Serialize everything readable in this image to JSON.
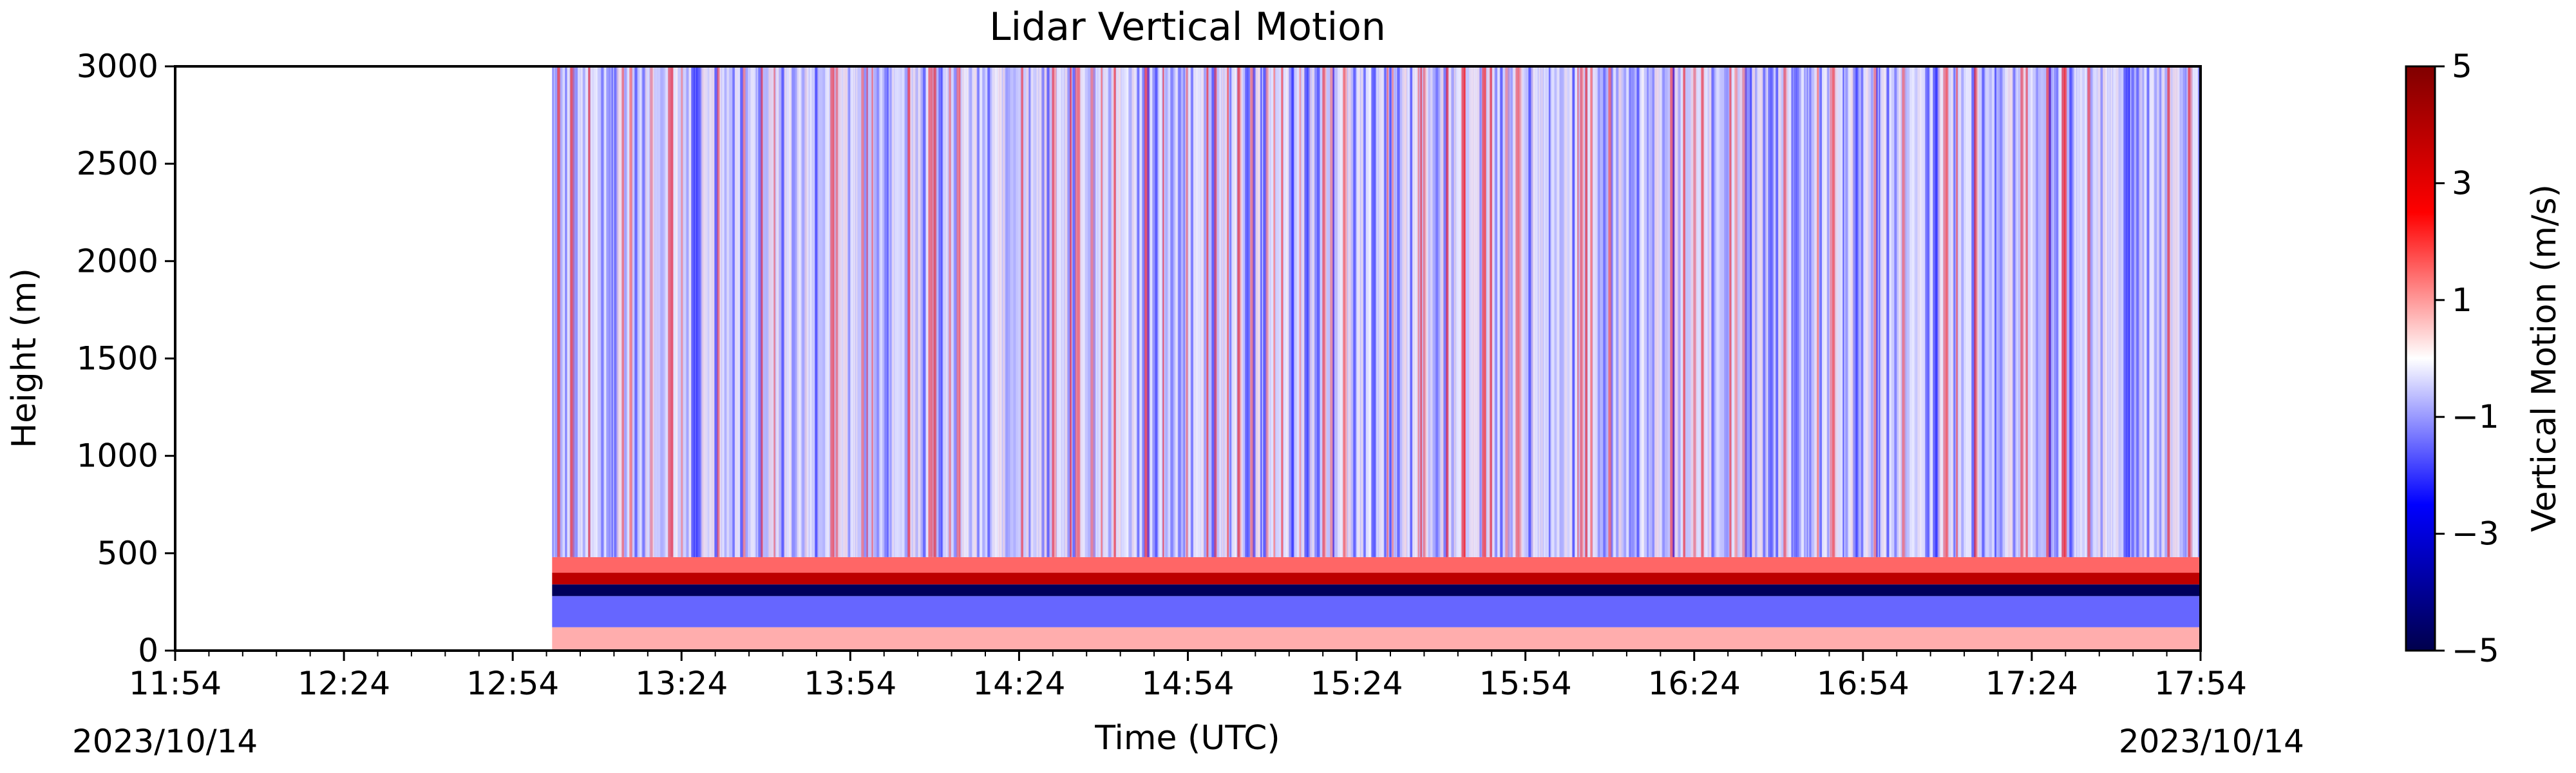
{
  "chart_data": {
    "type": "heatmap",
    "title": "Lidar Vertical Motion",
    "xlabel": "Time (UTC)",
    "ylabel": "Height (m)",
    "colorbar_label": "Vertical Motion (m/s)",
    "colormap": "seismic",
    "x_ticks": [
      "11:54",
      "12:24",
      "12:54",
      "13:24",
      "13:54",
      "14:24",
      "14:54",
      "15:24",
      "15:54",
      "16:24",
      "16:54",
      "17:24",
      "17:54"
    ],
    "x_date_left": "2023/10/14",
    "x_date_right": "2023/10/14",
    "xlim": [
      "2023-10-14 11:54",
      "2023-10-14 17:54"
    ],
    "data_start": "2023-10-14 13:01",
    "y_ticks": [
      0,
      500,
      1000,
      1500,
      2000,
      2500,
      3000
    ],
    "ylim": [
      0,
      3000
    ],
    "clim": [
      -5,
      5
    ],
    "colorbar_ticks": [
      "5",
      "3",
      "1",
      "−1",
      "−3",
      "−5"
    ],
    "colorbar_tick_values": [
      5,
      3,
      1,
      -1,
      -3,
      -5
    ],
    "layers": [
      {
        "from": 0,
        "to": 120,
        "value": 0.8
      },
      {
        "from": 120,
        "to": 280,
        "value": -1.5
      },
      {
        "from": 280,
        "to": 340,
        "value": -4.8
      },
      {
        "from": 340,
        "to": 400,
        "value": 3.8
      },
      {
        "from": 400,
        "to": 480,
        "value": 1.5
      },
      {
        "from": 480,
        "to": 3000,
        "value": -0.6
      }
    ],
    "colors": {
      "min": "#00004c",
      "mid": "#ffffff",
      "max": "#800000"
    }
  }
}
